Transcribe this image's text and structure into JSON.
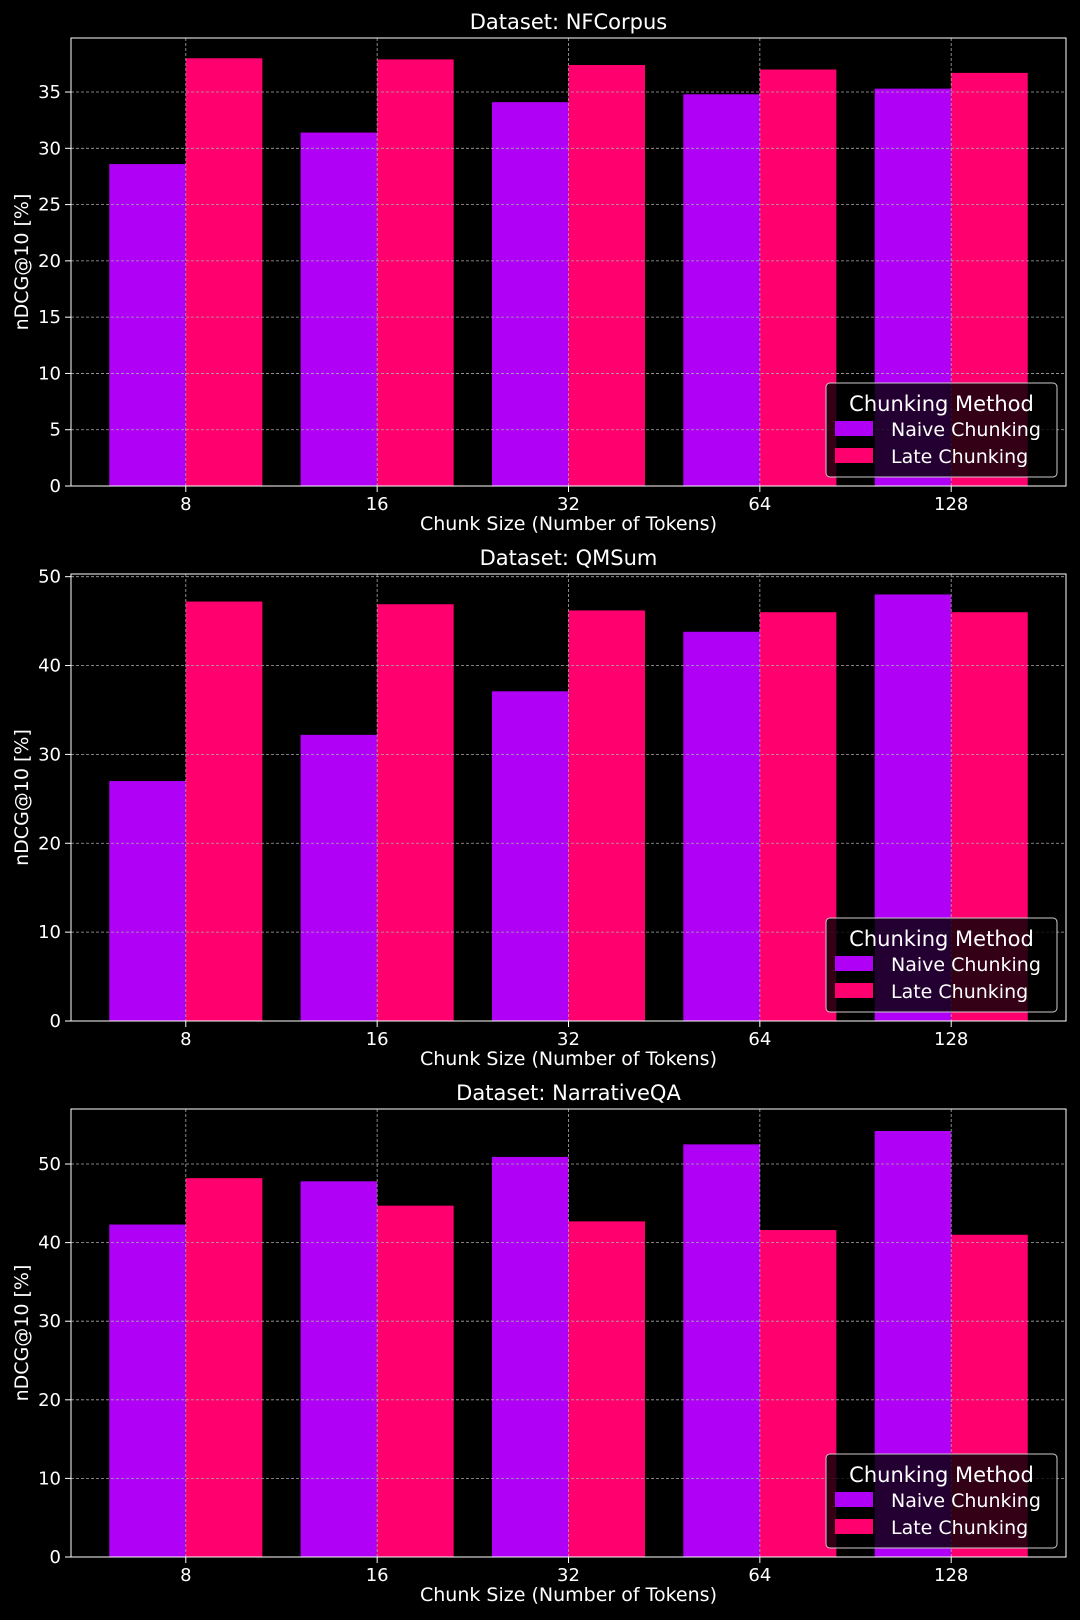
{
  "colors": {
    "background": "#000000",
    "foreground": "#ffffff",
    "grid": "#a8a8a8",
    "naive": "#b000f6",
    "late": "#ff006e"
  },
  "chart_data": [
    {
      "type": "bar",
      "title": "Dataset: NFCorpus",
      "xlabel": "Chunk Size (Number of Tokens)",
      "ylabel": "nDCG@10 [%]",
      "categories": [
        "8",
        "16",
        "32",
        "64",
        "128"
      ],
      "ylim": [
        0,
        39.8
      ],
      "yticks": [
        0,
        5,
        10,
        15,
        20,
        25,
        30,
        35
      ],
      "grid": true,
      "legend": {
        "title": "Chunking Method",
        "position": "lower-right"
      },
      "series": [
        {
          "name": "Naive Chunking",
          "values": [
            28.6,
            31.4,
            34.1,
            34.8,
            35.3
          ]
        },
        {
          "name": "Late Chunking",
          "values": [
            38.0,
            37.9,
            37.4,
            37.0,
            36.7
          ]
        }
      ]
    },
    {
      "type": "bar",
      "title": "Dataset: QMSum",
      "xlabel": "Chunk Size (Number of Tokens)",
      "ylabel": "nDCG@10 [%]",
      "categories": [
        "8",
        "16",
        "32",
        "64",
        "128"
      ],
      "ylim": [
        0,
        50.3
      ],
      "yticks": [
        0,
        10,
        20,
        30,
        40,
        50
      ],
      "grid": true,
      "legend": {
        "title": "Chunking Method",
        "position": "lower-right"
      },
      "series": [
        {
          "name": "Naive Chunking",
          "values": [
            27.0,
            32.2,
            37.1,
            43.8,
            48.0
          ]
        },
        {
          "name": "Late Chunking",
          "values": [
            47.2,
            46.9,
            46.2,
            46.0,
            46.0
          ]
        }
      ]
    },
    {
      "type": "bar",
      "title": "Dataset: NarrativeQA",
      "xlabel": "Chunk Size (Number of Tokens)",
      "ylabel": "nDCG@10 [%]",
      "categories": [
        "8",
        "16",
        "32",
        "64",
        "128"
      ],
      "ylim": [
        0,
        57.0
      ],
      "yticks": [
        0,
        10,
        20,
        30,
        40,
        50
      ],
      "grid": true,
      "legend": {
        "title": "Chunking Method",
        "position": "lower-right"
      },
      "series": [
        {
          "name": "Naive Chunking",
          "values": [
            42.3,
            47.8,
            50.9,
            52.5,
            54.2
          ]
        },
        {
          "name": "Late Chunking",
          "values": [
            48.2,
            44.7,
            42.7,
            41.6,
            41.0
          ]
        }
      ]
    }
  ]
}
